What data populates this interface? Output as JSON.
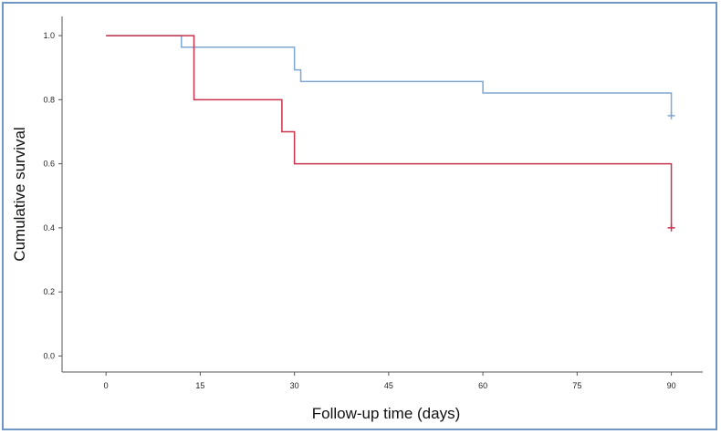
{
  "chart_data": {
    "type": "line",
    "step": true,
    "title": "",
    "xlabel": "Follow-up time (days)",
    "ylabel": "Cumulative survival",
    "xlim": [
      -7,
      95
    ],
    "ylim": [
      -0.05,
      1.06
    ],
    "xticks": [
      0,
      15,
      30,
      45,
      60,
      75,
      90
    ],
    "yticks": [
      0.0,
      0.2,
      0.4,
      0.6,
      0.8,
      1.0
    ],
    "xtick_labels": [
      "0",
      "15",
      "30",
      "45",
      "60",
      "75",
      "90"
    ],
    "ytick_labels": [
      "0.0",
      "0.2",
      "0.4",
      "0.6",
      "0.8",
      "1.0"
    ],
    "grid": false,
    "legend": "none",
    "series": [
      {
        "color": "#7fa7d1",
        "x": [
          0,
          12,
          30,
          31,
          60,
          90
        ],
        "y": [
          1.0,
          0.964,
          0.893,
          0.857,
          0.821,
          0.75
        ],
        "censored": [
          {
            "x": 90,
            "y": 0.75
          }
        ]
      },
      {
        "color": "#c8334e",
        "x": [
          0,
          14,
          28,
          30,
          90
        ],
        "y": [
          1.0,
          0.8,
          0.7,
          0.6,
          0.4
        ],
        "censored": [
          {
            "x": 90,
            "y": 0.4
          }
        ]
      }
    ]
  }
}
